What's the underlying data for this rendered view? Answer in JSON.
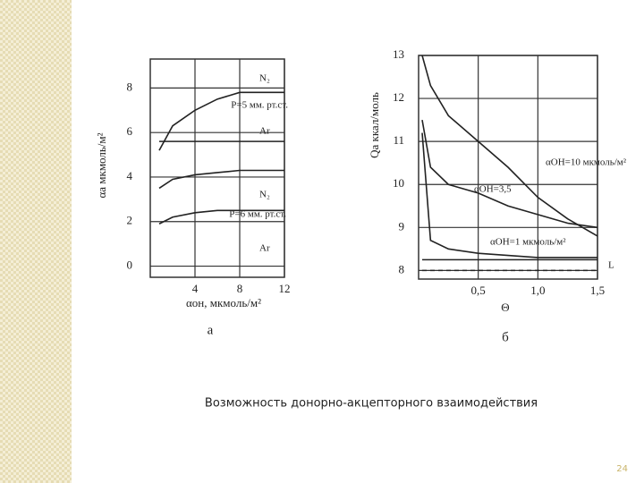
{
  "chart_data": [
    {
      "type": "line",
      "caption": "а",
      "x_label": "αон, мкмоль/м²",
      "y_label": "αа мкмоль/м²",
      "x": [
        0.8,
        2,
        4,
        6,
        8,
        12
      ],
      "series": [
        {
          "name": "N₂",
          "color": "#222222",
          "values": [
            5.2,
            6.3,
            7.0,
            7.5,
            7.8,
            7.8
          ]
        },
        {
          "name": "Ar",
          "color": "#222222",
          "values": [
            5.6,
            5.6,
            5.6,
            5.6,
            5.6,
            5.6
          ]
        },
        {
          "name": "N₂",
          "color": "#222222",
          "values": [
            3.5,
            3.9,
            4.1,
            4.2,
            4.3,
            4.3
          ]
        },
        {
          "name": "Ar",
          "color": "#222222",
          "values": [
            1.9,
            2.2,
            2.4,
            2.5,
            2.5,
            2.5
          ]
        }
      ],
      "annotations": [
        "P=5 мм. рт.ст.",
        "P=6 мм. рт.ст."
      ],
      "xlim": [
        0,
        12
      ],
      "xticks": [
        4,
        8,
        12
      ],
      "ylim": [
        -0.5,
        9.3
      ],
      "yticks": [
        0,
        2,
        4,
        6,
        8
      ],
      "grid": true
    },
    {
      "type": "line",
      "caption": "б",
      "x_label": "Θ",
      "y_label": "Qа ккал/моль",
      "x": [
        0.03,
        0.1,
        0.25,
        0.5,
        0.75,
        1.0,
        1.25,
        1.5
      ],
      "series": [
        {
          "name": "αОН=10 мкмоль/м²",
          "color": "#222222",
          "values": [
            13,
            12.3,
            11.6,
            11.0,
            10.4,
            9.7,
            9.2,
            8.8
          ]
        },
        {
          "name": "αОН=3,5",
          "color": "#222222",
          "values": [
            11.5,
            10.4,
            10.0,
            9.8,
            9.5,
            9.3,
            9.1,
            9.0
          ]
        },
        {
          "name": "αОН=1 мкмоль/м²",
          "color": "#222222",
          "values": [
            11.2,
            8.7,
            8.5,
            8.4,
            8.35,
            8.3,
            8.3,
            8.3
          ]
        },
        {
          "name": "L",
          "color": "#222222",
          "values": [
            8.25,
            8.25,
            8.25,
            8.25,
            8.25,
            8.25,
            8.25,
            8.25
          ]
        },
        {
          "color": "#222222",
          "dashed": true,
          "values": [
            8.0,
            8.0,
            8.0,
            8.0,
            8.0,
            8.0,
            8.0,
            8.0
          ]
        }
      ],
      "xlim": [
        0,
        1.5
      ],
      "xticks": [
        {
          "value": 0.5,
          "label": "0,5"
        },
        {
          "value": 1.0,
          "label": "1,0"
        },
        {
          "value": 1.5,
          "label": "1,5"
        }
      ],
      "ylim": [
        7.8,
        13
      ],
      "yticks": [
        8,
        9,
        10,
        11,
        12,
        13
      ],
      "grid": true
    }
  ],
  "caption": "Возможность донорно-акцепторного взаимодействия",
  "page_number": "24"
}
